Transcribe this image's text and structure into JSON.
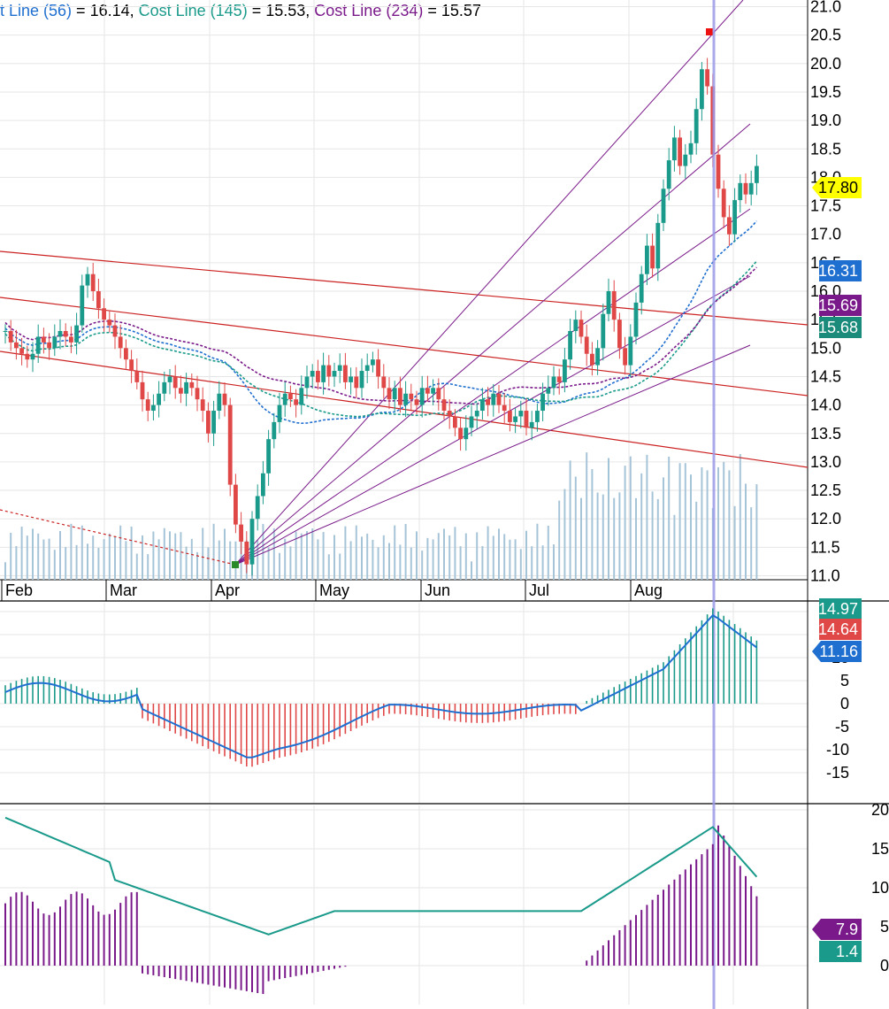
{
  "header": {
    "items": [
      {
        "name": "t Line (56)",
        "value": "16.14",
        "color": "#1f6fd0"
      },
      {
        "name": "Cost Line (145)",
        "value": "15.53",
        "color": "#1a9a8a"
      },
      {
        "name": "Cost Line (234)",
        "value": "15.57",
        "color": "#7a1a8a"
      }
    ]
  },
  "chart_data": [
    {
      "type": "candlestick",
      "title": "",
      "x_tick_labels": [
        "Feb",
        "Mar",
        "Apr",
        "May",
        "Jun",
        "Jul",
        "Aug"
      ],
      "y_tick_labels": [
        "21.0",
        "20.5",
        "20.0",
        "19.5",
        "19.0",
        "18.5",
        "18.0",
        "17.5",
        "17.0",
        "16.5",
        "16.0",
        "15.5",
        "15.0",
        "14.5",
        "14.0",
        "13.5",
        "13.0",
        "12.5",
        "12.0",
        "11.5",
        "11.0"
      ],
      "ylim": [
        10.8,
        21.2
      ],
      "close_series": [
        15.3,
        15.1,
        15.0,
        14.9,
        14.8,
        14.9,
        15.2,
        15.1,
        15.0,
        15.2,
        15.3,
        15.2,
        15.1,
        15.4,
        16.1,
        16.3,
        16.0,
        15.7,
        15.5,
        15.4,
        15.2,
        15.0,
        14.8,
        14.6,
        14.4,
        14.1,
        13.9,
        14.0,
        14.2,
        14.4,
        14.5,
        14.3,
        14.2,
        14.4,
        14.3,
        14.1,
        13.9,
        13.5,
        13.9,
        14.2,
        14.0,
        12.6,
        11.9,
        11.6,
        11.2,
        12.0,
        12.4,
        12.8,
        13.4,
        13.7,
        14.0,
        14.2,
        14.1,
        14.0,
        14.3,
        14.5,
        14.6,
        14.4,
        14.7,
        14.5,
        14.6,
        14.7,
        14.4,
        14.5,
        14.3,
        14.6,
        14.7,
        14.8,
        14.5,
        14.3,
        14.1,
        14.3,
        14.0,
        14.2,
        14.1,
        14.0,
        14.3,
        14.2,
        14.3,
        14.1,
        13.9,
        13.8,
        13.6,
        13.4,
        13.6,
        13.8,
        13.9,
        14.1,
        14.0,
        14.2,
        14.0,
        13.9,
        13.7,
        13.8,
        13.9,
        13.6,
        13.7,
        13.9,
        14.2,
        14.3,
        14.5,
        14.4,
        14.8,
        15.3,
        15.5,
        15.2,
        14.9,
        14.7,
        15.0,
        15.6,
        16.0,
        15.5,
        15.0,
        14.7,
        15.2,
        15.8,
        16.3,
        16.8,
        16.4,
        17.2,
        17.8,
        18.3,
        18.7,
        18.2,
        18.4,
        18.6,
        19.2,
        19.9,
        19.6,
        18.4,
        17.8,
        17.3,
        17.0,
        17.6,
        17.9,
        17.7,
        17.9,
        18.2
      ],
      "annotations": [
        {
          "label": "17.80",
          "color": "#ffff00"
        },
        {
          "label": "16.31",
          "color": "#1f6fd0"
        },
        {
          "label": "15.69",
          "color": "#7a1a8a"
        },
        {
          "label": "15.68",
          "color": "#1a8a7a"
        }
      ],
      "legend": [
        {
          "name": "t Line (56)",
          "value": 16.14
        },
        {
          "name": "Cost Line (145)",
          "value": 15.53
        },
        {
          "name": "Cost Line (234)",
          "value": 15.57
        }
      ],
      "grid": true
    },
    {
      "type": "bar_line",
      "y_tick_labels": [
        "20",
        "15",
        "10",
        "5",
        "0",
        "-5",
        "-10",
        "-15"
      ],
      "ylim": [
        -20,
        22
      ],
      "annotations": [
        {
          "label": "14.97",
          "color": "#1a9a8a"
        },
        {
          "label": "14.64",
          "color": "#e04848"
        },
        {
          "label": "11.16",
          "color": "#1f6fd0"
        }
      ],
      "grid": true
    },
    {
      "type": "bar_line",
      "y_tick_labels": [
        "20",
        "15",
        "10",
        "5",
        "0"
      ],
      "ylim": [
        -5,
        21
      ],
      "annotations": [
        {
          "label": "7.9",
          "color": "#7a1a8a"
        },
        {
          "label": "1.4",
          "color": "#1a9a8a"
        }
      ],
      "grid": true
    }
  ],
  "colors": {
    "up": "#1a9a8a",
    "down": "#e04848",
    "volume": "#a6c4d8",
    "fan": "#7a1a8a",
    "channel": "#cc2222",
    "cost56": "#1f6fd0",
    "cost145": "#1a9a8a",
    "cost234": "#7a1a8a",
    "crosshair": "#9a9ae8"
  }
}
